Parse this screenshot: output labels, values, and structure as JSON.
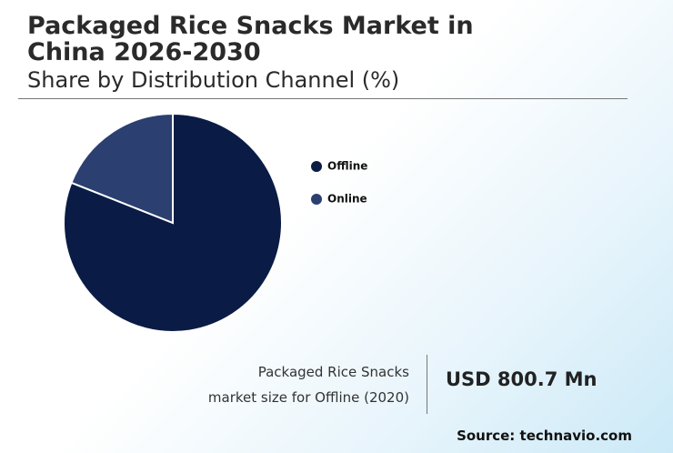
{
  "chart_data": {
    "type": "pie",
    "title": "Packaged Rice Snacks Market in China 2026-2030",
    "subtitle": "Share by Distribution Channel (%)",
    "categories": [
      "Offline",
      "Online"
    ],
    "values": [
      81,
      19
    ],
    "colors": [
      "#0a1c45",
      "#2b3f70"
    ]
  },
  "summary": {
    "label_lines": [
      "Packaged Rice Snacks",
      "market size for Offline (2020)"
    ],
    "value": "USD 800.7 Mn"
  },
  "source": "Source: technavio.com"
}
